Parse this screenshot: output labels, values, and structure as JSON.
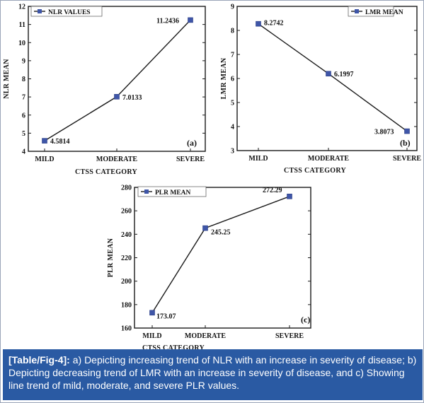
{
  "chart_data": [
    {
      "type": "line",
      "panel_tag": "(a)",
      "categories": [
        "MILD",
        "MODERATE",
        "SEVERE"
      ],
      "series": [
        {
          "name": "NLR VALUES",
          "values": [
            4.5814,
            7.0133,
            11.2436
          ]
        }
      ],
      "value_labels": [
        "4.5814",
        "7.0133",
        "11.2436"
      ],
      "xlabel": "CTSS CATEGORY",
      "ylabel": "NLR MEAN",
      "ylim": [
        4,
        12
      ],
      "yticks": [
        4,
        5,
        6,
        7,
        8,
        9,
        10,
        11,
        12
      ],
      "legend_position": "top-left",
      "color": "#3f56a8"
    },
    {
      "type": "line",
      "panel_tag": "(b)",
      "categories": [
        "MILD",
        "MODERATE",
        "SEVERE"
      ],
      "series": [
        {
          "name": "LMR MEAN",
          "values": [
            8.2742,
            6.1997,
            3.8073
          ]
        }
      ],
      "value_labels": [
        "8.2742",
        "6.1997",
        "3.8073"
      ],
      "xlabel": "CTSS CATEGORY",
      "ylabel": "LMR MEAN",
      "ylim": [
        3,
        9
      ],
      "yticks": [
        3,
        4,
        5,
        6,
        7,
        8,
        9
      ],
      "legend_position": "top-right",
      "color": "#3f56a8"
    },
    {
      "type": "line",
      "panel_tag": "(c)",
      "categories": [
        "MILD",
        "MODERATE",
        "SEVERE"
      ],
      "series": [
        {
          "name": "PLR MEAN",
          "values": [
            173.07,
            245.25,
            272.29
          ]
        }
      ],
      "value_labels": [
        "173.07",
        "245.25",
        "272.29"
      ],
      "xlabel": "CTSS CATEGORY",
      "ylabel": "PLR MEAN",
      "ylim": [
        160,
        280
      ],
      "yticks": [
        160,
        180,
        200,
        220,
        240,
        260,
        280
      ],
      "legend_position": "top-left",
      "color": "#3f56a8"
    }
  ],
  "caption": {
    "label": "[Table/Fig-4]:",
    "text": " a) Depicting increasing trend of NLR with an increase in severity of disease; b) Depicting decreasing trend of LMR with an increase in severity of disease, and c) Showing line trend of mild, moderate, and severe PLR values."
  },
  "colors": {
    "caption_bg": "#2a5aa3",
    "marker": "#3f56a8"
  }
}
